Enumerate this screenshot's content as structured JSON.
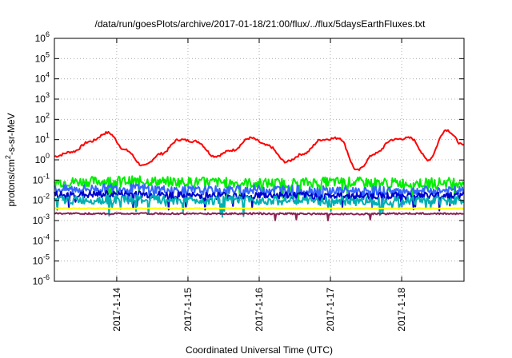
{
  "chart_data": {
    "type": "line",
    "title": "/data/run/goesPlots/archive/2017-01-18/21:00/flux/../flux/5daysEarthFluxes.txt",
    "xlabel": "Coordinated Universal Time (UTC)",
    "ylabel": {
      "base": "protons/cm",
      "sup": "2",
      "rest": "-s-sr-MeV"
    },
    "y_scale": "log",
    "ylim": [
      1e-06,
      1000000.0
    ],
    "y_ticks": [
      {
        "base": "10",
        "exp": "6"
      },
      {
        "base": "10",
        "exp": "5"
      },
      {
        "base": "10",
        "exp": "4"
      },
      {
        "base": "10",
        "exp": "3"
      },
      {
        "base": "10",
        "exp": "2"
      },
      {
        "base": "10",
        "exp": "1"
      },
      {
        "base": "10",
        "exp": "0"
      },
      {
        "base": "10",
        "exp": "-1"
      },
      {
        "base": "10",
        "exp": "-2"
      },
      {
        "base": "10",
        "exp": "-3"
      },
      {
        "base": "10",
        "exp": "-4"
      },
      {
        "base": "10",
        "exp": "-5"
      },
      {
        "base": "10",
        "exp": "-6"
      }
    ],
    "x_range_days": [
      "2017-01-13 03:00",
      "2017-01-18 21:00"
    ],
    "x_tick_labels": [
      "2017-1-14",
      "2017-1-15",
      "2017-1-16",
      "2017-1-17",
      "2017-1-18"
    ],
    "grid": true,
    "legend": "none",
    "series": [
      {
        "color": "#ff0000",
        "x": [
          "2017-01-13 03:00",
          "2017-01-13 09:00",
          "2017-01-13 15:00",
          "2017-01-13 21:00",
          "2017-01-14 03:00",
          "2017-01-14 09:00",
          "2017-01-14 15:00",
          "2017-01-14 21:00",
          "2017-01-15 03:00",
          "2017-01-15 09:00",
          "2017-01-15 15:00",
          "2017-01-15 21:00",
          "2017-01-16 03:00",
          "2017-01-16 09:00",
          "2017-01-16 15:00",
          "2017-01-16 21:00",
          "2017-01-17 03:00",
          "2017-01-17 09:00",
          "2017-01-17 15:00",
          "2017-01-17 21:00",
          "2017-01-18 03:00",
          "2017-01-18 09:00",
          "2017-01-18 15:00",
          "2017-01-18 21:00"
        ],
        "values": [
          1.5,
          2.5,
          8,
          22,
          3,
          0.5,
          2,
          10,
          8,
          1.5,
          3,
          12,
          5,
          0.8,
          2,
          10,
          12,
          0.3,
          2,
          10,
          12,
          1,
          30,
          5
        ]
      },
      {
        "color": "#00ee00",
        "x": [
          "2017-01-13 03:00",
          "2017-01-14 03:00",
          "2017-01-15 03:00",
          "2017-01-16 03:00",
          "2017-01-17 03:00",
          "2017-01-18 03:00",
          "2017-01-18 21:00"
        ],
        "values": [
          0.08,
          0.09,
          0.08,
          0.07,
          0.08,
          0.07,
          0.08
        ]
      },
      {
        "color": "#3366ff",
        "x": [
          "2017-01-13 03:00",
          "2017-01-14 03:00",
          "2017-01-15 03:00",
          "2017-01-16 03:00",
          "2017-01-17 03:00",
          "2017-01-18 03:00",
          "2017-01-18 21:00"
        ],
        "values": [
          0.035,
          0.04,
          0.03,
          0.035,
          0.03,
          0.03,
          0.03
        ]
      },
      {
        "color": "#0000cc",
        "x": [
          "2017-01-13 03:00",
          "2017-01-14 03:00",
          "2017-01-15 03:00",
          "2017-01-16 03:00",
          "2017-01-17 03:00",
          "2017-01-18 03:00",
          "2017-01-18 21:00"
        ],
        "values": [
          0.018,
          0.02,
          0.017,
          0.018,
          0.016,
          0.017,
          0.018
        ]
      },
      {
        "color": "#00b0b0",
        "x": [
          "2017-01-13 03:00",
          "2017-01-14 03:00",
          "2017-01-15 03:00",
          "2017-01-16 03:00",
          "2017-01-17 03:00",
          "2017-01-18 03:00",
          "2017-01-18 21:00"
        ],
        "values": [
          0.01,
          0.011,
          0.01,
          0.01,
          0.009,
          0.01,
          0.01
        ]
      },
      {
        "color": "#ffff00",
        "x": [
          "2017-01-13 03:00",
          "2017-01-14 03:00",
          "2017-01-15 03:00",
          "2017-01-16 03:00",
          "2017-01-17 03:00",
          "2017-01-18 03:00",
          "2017-01-18 21:00"
        ],
        "values": [
          0.004,
          0.004,
          0.004,
          0.004,
          0.004,
          0.004,
          0.004
        ]
      },
      {
        "color": "#8b2252",
        "x": [
          "2017-01-13 03:00",
          "2017-01-14 03:00",
          "2017-01-15 03:00",
          "2017-01-16 03:00",
          "2017-01-17 03:00",
          "2017-01-18 03:00",
          "2017-01-18 21:00"
        ],
        "values": [
          0.0022,
          0.0022,
          0.0022,
          0.0022,
          0.0021,
          0.0022,
          0.0022
        ]
      }
    ]
  }
}
